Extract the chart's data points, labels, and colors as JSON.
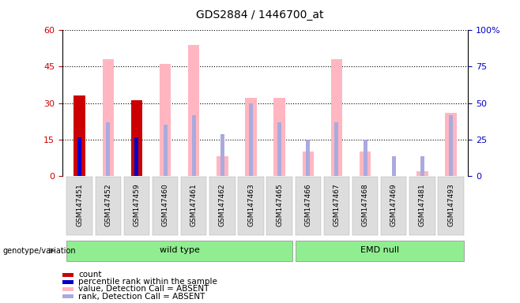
{
  "title": "GDS2884 / 1446700_at",
  "samples": [
    "GSM147451",
    "GSM147452",
    "GSM147459",
    "GSM147460",
    "GSM147461",
    "GSM147462",
    "GSM147463",
    "GSM147465",
    "GSM147466",
    "GSM147467",
    "GSM147468",
    "GSM147469",
    "GSM147481",
    "GSM147493"
  ],
  "count": [
    33,
    0,
    31,
    0,
    0,
    0,
    0,
    0,
    0,
    0,
    0,
    0,
    0,
    0
  ],
  "percentile_rank": [
    16,
    0,
    16,
    0,
    0,
    0,
    0,
    0,
    0,
    0,
    0,
    0,
    0,
    0
  ],
  "value_absent": [
    0,
    48,
    0,
    46,
    54,
    8,
    32,
    32,
    10,
    48,
    10,
    0,
    2,
    26
  ],
  "rank_absent": [
    0,
    22,
    0,
    21,
    25,
    17,
    30,
    22,
    15,
    22,
    15,
    8,
    8,
    25
  ],
  "ylim_left": [
    0,
    60
  ],
  "ylim_right": [
    0,
    100
  ],
  "yticks_left": [
    0,
    15,
    30,
    45,
    60
  ],
  "yticks_right": [
    0,
    25,
    50,
    75,
    100
  ],
  "ytick_labels_right": [
    "0",
    "25",
    "50",
    "75",
    "100%"
  ],
  "group_labels": [
    "wild type",
    "EMD null"
  ],
  "wt_count": 8,
  "emd_count": 6,
  "group_color": "#90EE90",
  "bar_width": 0.4,
  "count_color": "#CC0000",
  "rank_color": "#0000CC",
  "value_absent_color": "#FFB6C1",
  "rank_absent_color": "#AAAADD",
  "bg_color": "#FFFFFF",
  "tick_label_color": "#CC0000",
  "right_axis_color": "#0000CC",
  "genotype_label": "genotype/variation",
  "legend_items": [
    {
      "label": "count",
      "color": "#CC0000"
    },
    {
      "label": "percentile rank within the sample",
      "color": "#0000CC"
    },
    {
      "label": "value, Detection Call = ABSENT",
      "color": "#FFB6C1"
    },
    {
      "label": "rank, Detection Call = ABSENT",
      "color": "#AAAADD"
    }
  ]
}
